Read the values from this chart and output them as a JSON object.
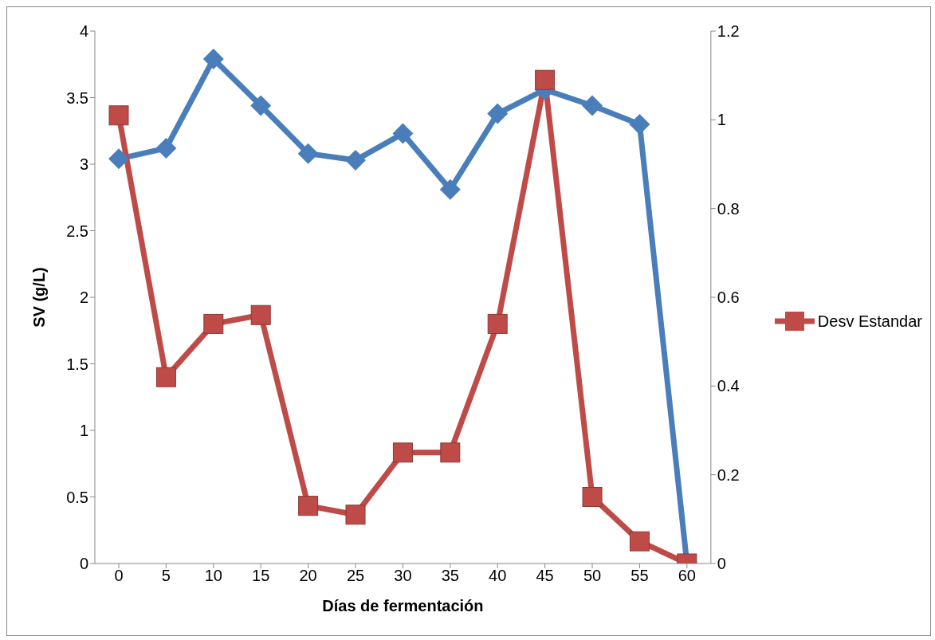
{
  "chart_data": {
    "type": "line",
    "xlabel": "Días de fermentación",
    "ylabel": "SV (g/L)",
    "categories": [
      "0",
      "5",
      "10",
      "15",
      "20",
      "25",
      "30",
      "35",
      "40",
      "45",
      "50",
      "55",
      "60"
    ],
    "series": [
      {
        "color": "#4a7ebb",
        "marker": "diamond",
        "values": [
          3.04,
          3.12,
          3.79,
          3.44,
          3.08,
          3.03,
          3.23,
          2.81,
          3.38,
          3.56,
          3.44,
          3.3,
          0
        ]
      },
      {
        "name": "Desv Estandar",
        "color": "#be4b48",
        "marker": "square",
        "axis": "y2",
        "values": [
          1.01,
          0.42,
          0.54,
          0.56,
          0.13,
          0.11,
          0.25,
          0.25,
          0.54,
          1.09,
          0.15,
          0.05,
          0
        ]
      }
    ],
    "ylim": [
      0,
      4
    ],
    "yticks": [
      0,
      0.5,
      1,
      1.5,
      2,
      2.5,
      3,
      3.5,
      4
    ],
    "y2lim": [
      0,
      1.2
    ],
    "y2ticks": [
      0,
      0.2,
      0.4,
      0.6,
      0.8,
      1,
      1.2
    ],
    "grid": false,
    "legend": "right"
  }
}
